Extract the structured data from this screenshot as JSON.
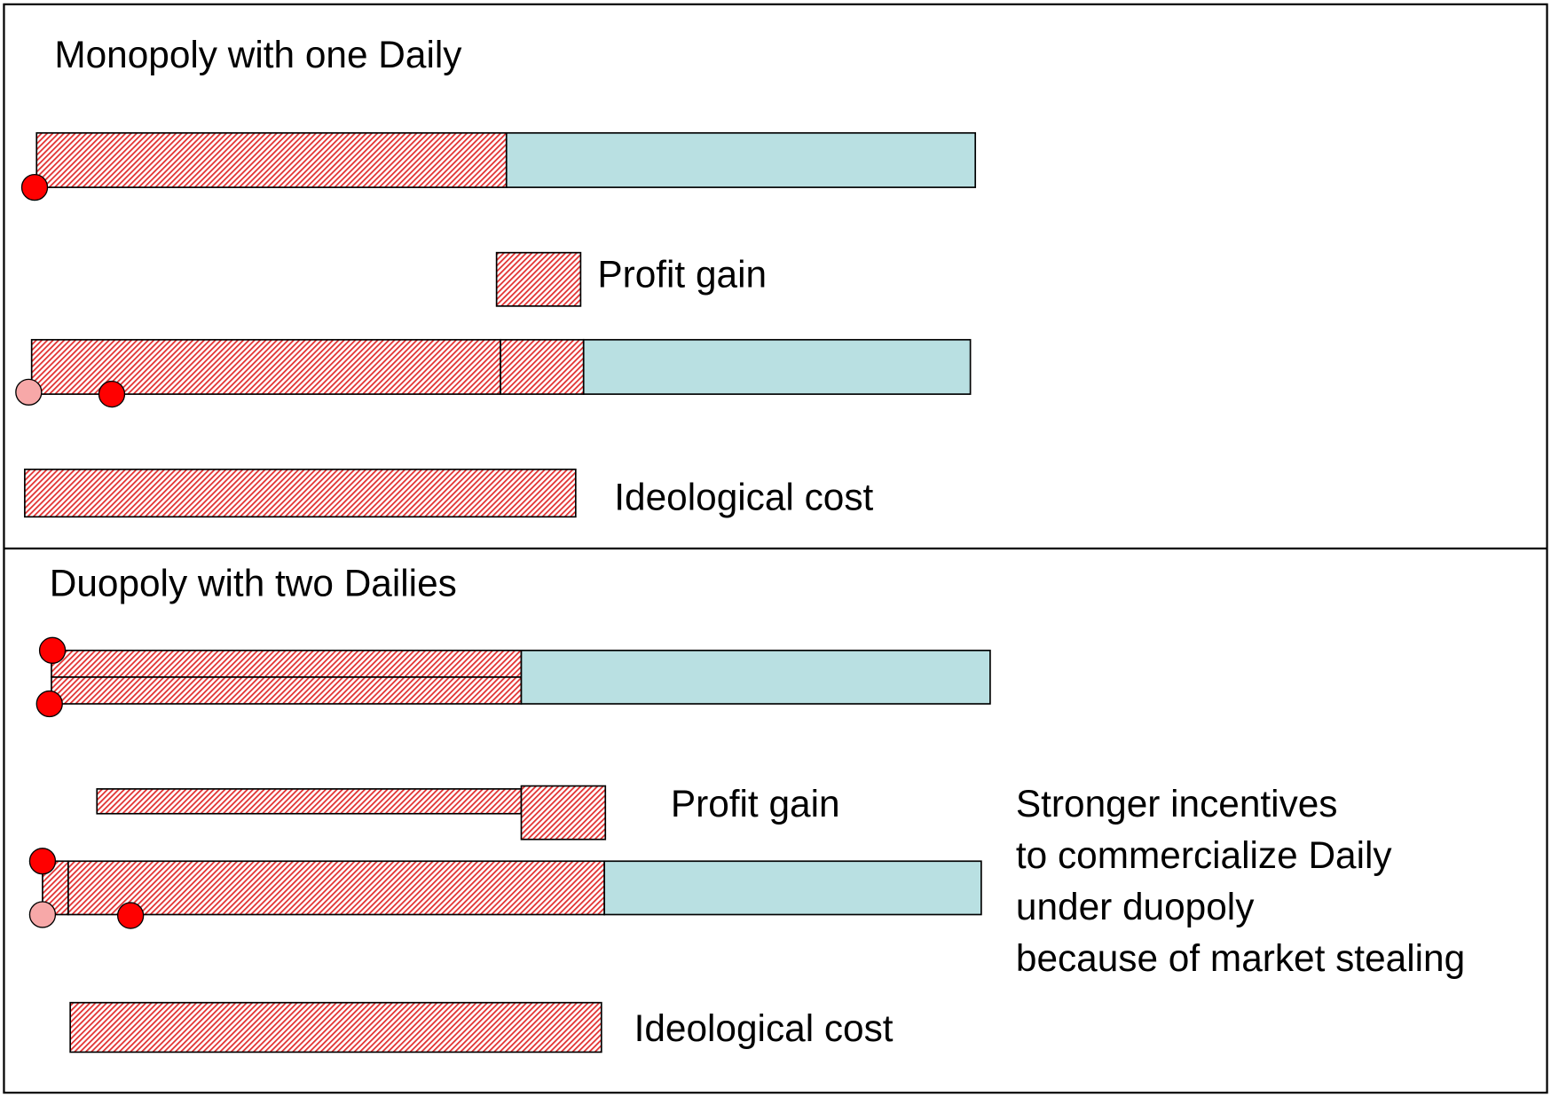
{
  "monopoly": {
    "title": "Monopoly with one Daily",
    "profit_label": "Profit gain",
    "cost_label": "Ideological cost"
  },
  "duopoly": {
    "title": "Duopoly with two Dailies",
    "profit_label": "Profit gain",
    "cost_label": "Ideological cost",
    "note": [
      "Stronger incentives",
      "to commercialize Daily",
      "under duopoly",
      "because of market stealing"
    ]
  }
}
